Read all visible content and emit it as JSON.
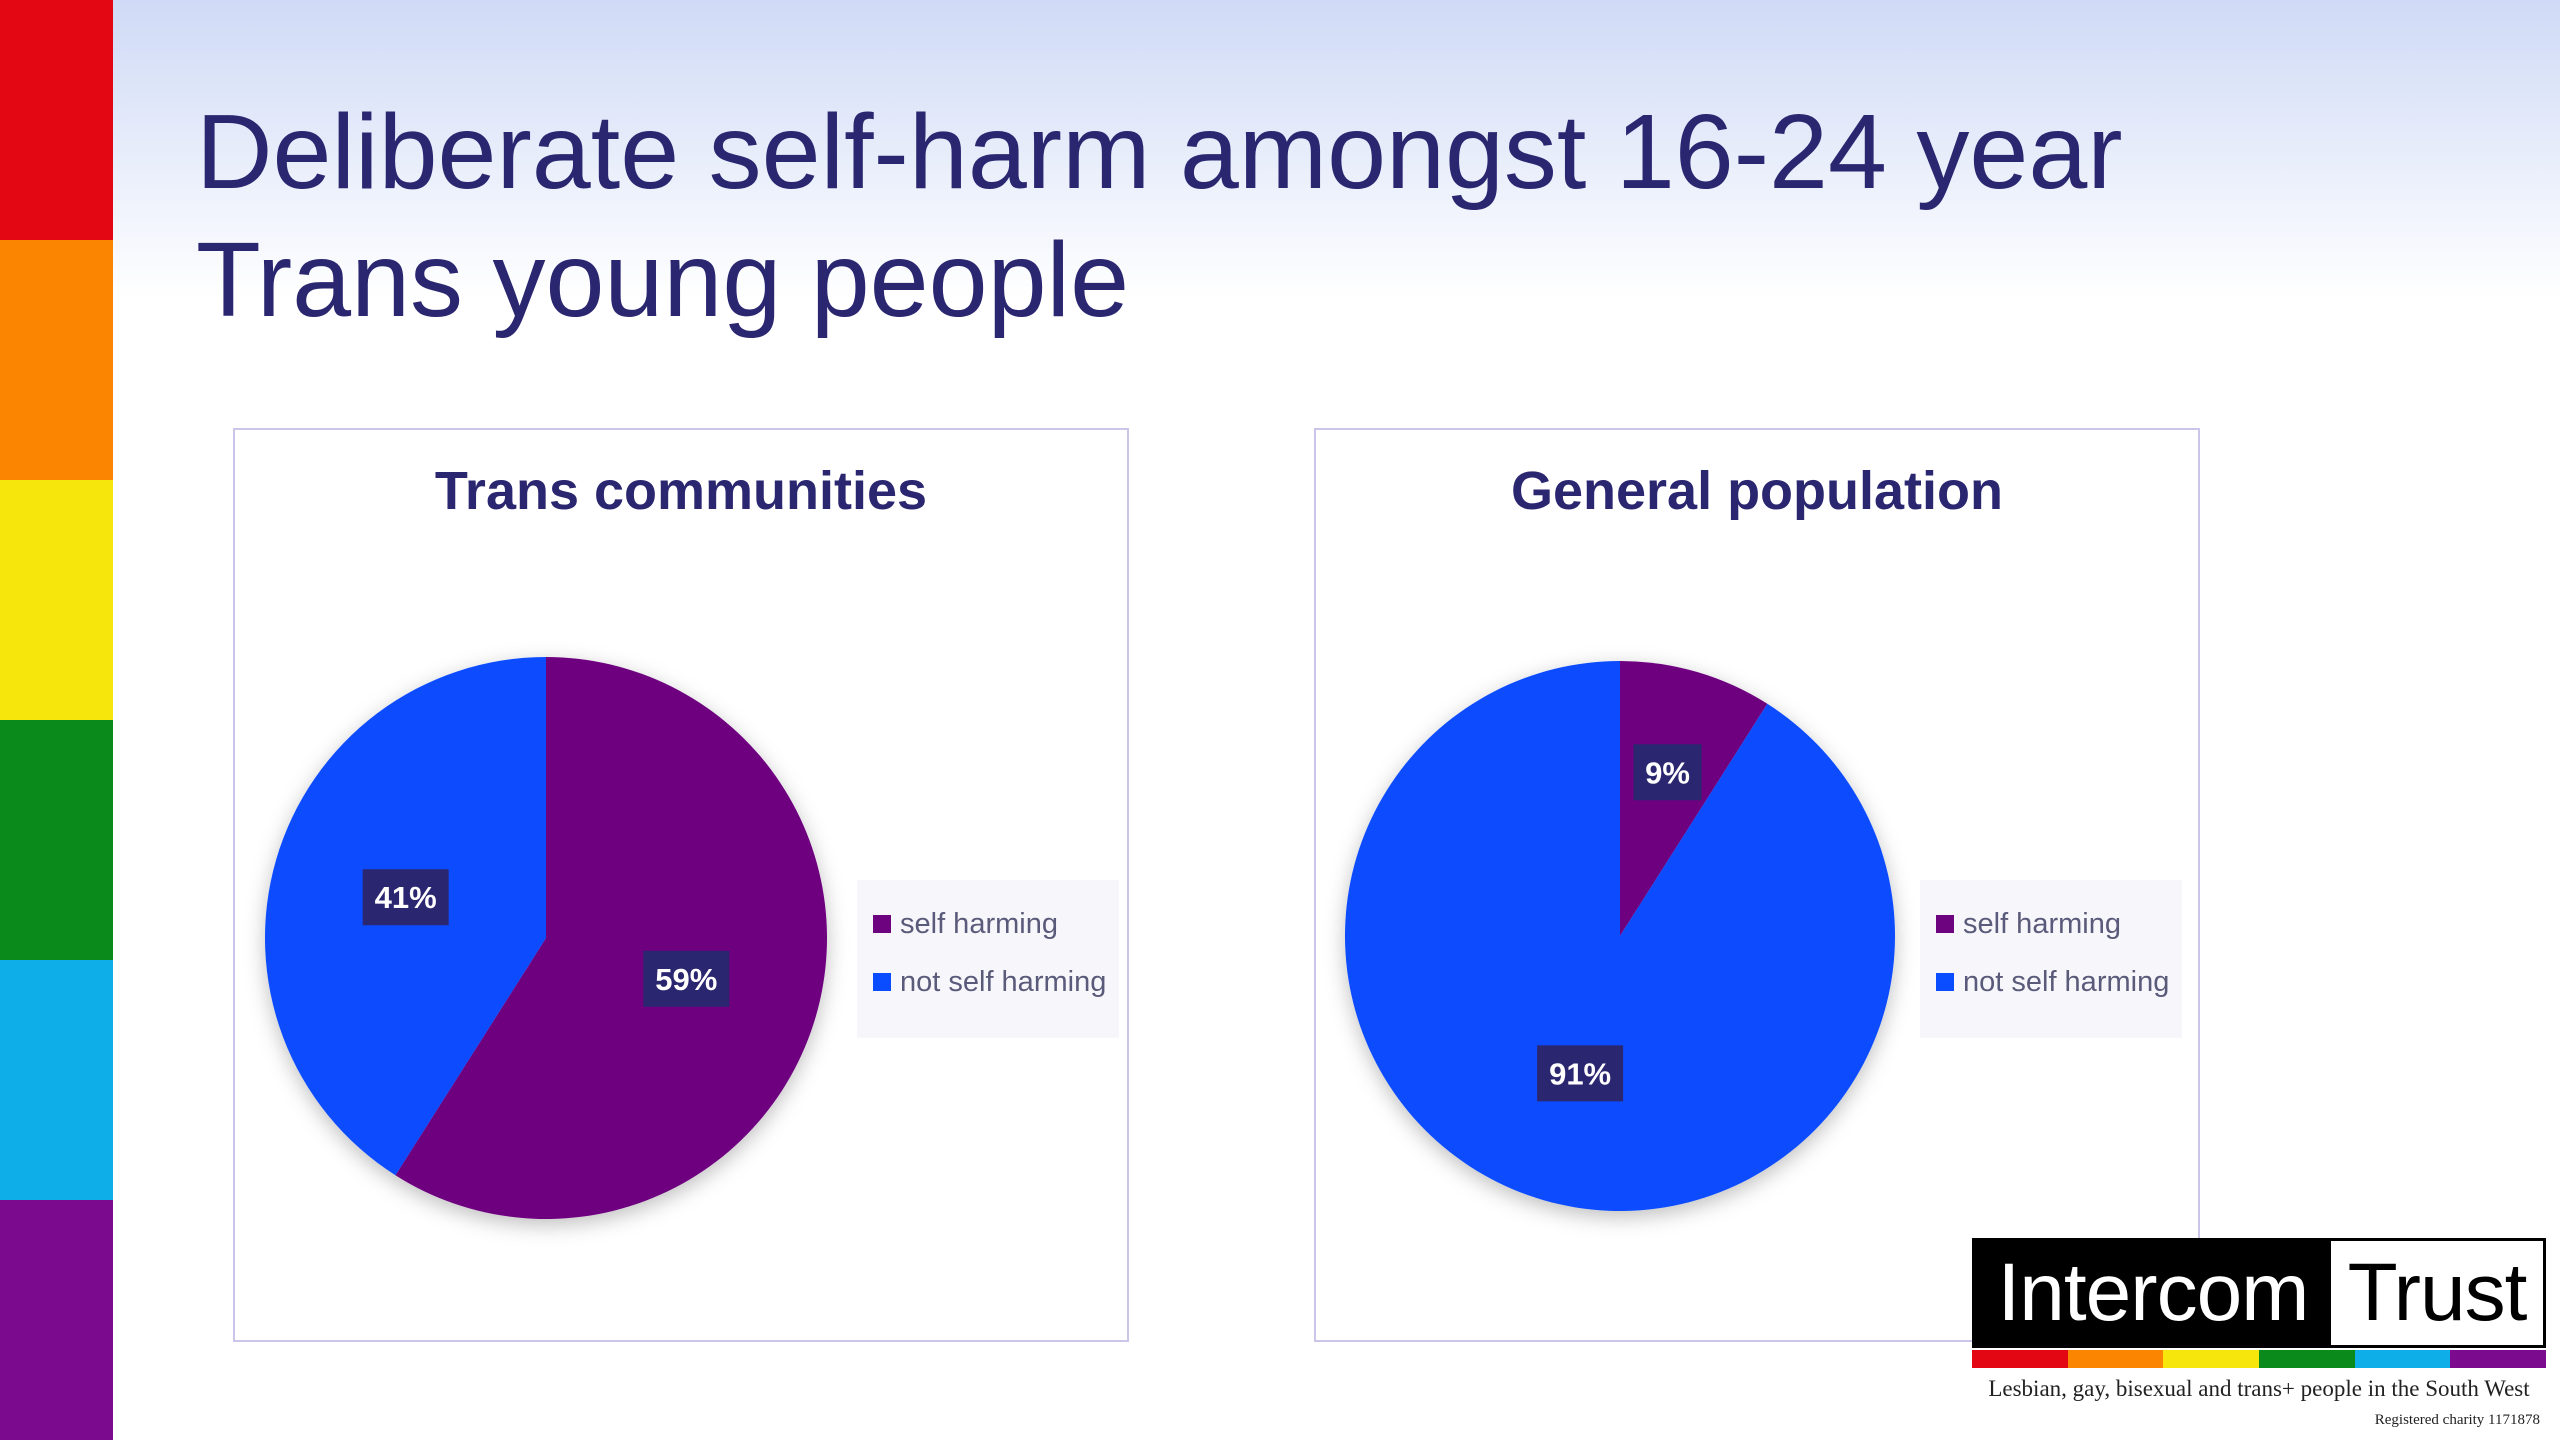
{
  "slide": {
    "title_lines": [
      "Deliberate self-harm amongst 16-24 year",
      "Trans young people"
    ]
  },
  "colors": {
    "title": "#2b2670",
    "self_harming": "#6e0380",
    "not_self_harming": "#0a4cff",
    "label_box": "#2b2670",
    "rainbow": [
      "#e30613",
      "#fb8500",
      "#f6e60c",
      "#0b8a1c",
      "#0eaee8",
      "#7b0a8e"
    ]
  },
  "chart_data": [
    {
      "type": "pie",
      "title": "Trans communities",
      "categories": [
        "self harming",
        "not self harming"
      ],
      "values": [
        59,
        41
      ],
      "data_labels": [
        "59%",
        "41%"
      ],
      "legend_position": "right",
      "start_angle_deg": 0,
      "direction": "clockwise"
    },
    {
      "type": "pie",
      "title": "General population",
      "categories": [
        "self harming",
        "not self harming"
      ],
      "values": [
        9,
        91
      ],
      "data_labels": [
        "9%",
        "91%"
      ],
      "legend_position": "right",
      "start_angle_deg": 0,
      "direction": "clockwise"
    }
  ],
  "logo": {
    "left_word": "Intercom",
    "right_word": "Trust",
    "tagline": "Lesbian, gay, bisexual and trans+ people in the South West",
    "charity": "Registered charity 1171878",
    "bar_colors": [
      "#e30613",
      "#fb8500",
      "#f6e60c",
      "#0b8a1c",
      "#0eaee8",
      "#7b0a8e"
    ]
  }
}
